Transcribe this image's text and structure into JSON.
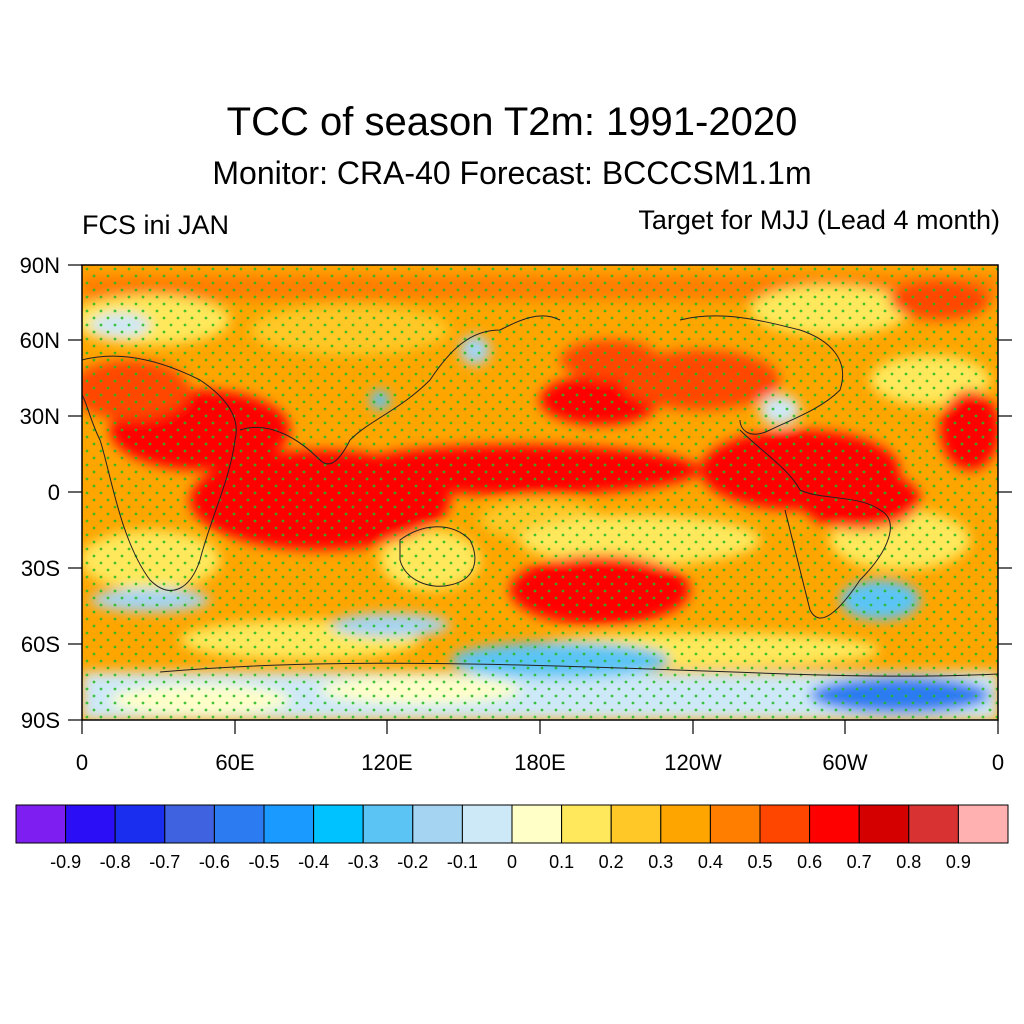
{
  "title": "TCC of season T2m: 1991-2020",
  "subtitle": "Monitor: CRA-40   Forecast: BCCCSM1.1m",
  "left_label": "FCS ini JAN",
  "right_label": "Target for MJJ (Lead 4 month)",
  "lat_labels": [
    "90N",
    "60N",
    "30N",
    "0",
    "30S",
    "60S",
    "90S"
  ],
  "lon_labels": [
    "0",
    "60E",
    "120E",
    "180E",
    "120W",
    "60W",
    "0"
  ],
  "colorbar": {
    "colors": [
      "#7e1ef0",
      "#2b0ef5",
      "#1a2ef0",
      "#3f62e0",
      "#2c7bf0",
      "#1a9aff",
      "#00c2ff",
      "#5cc4f5",
      "#a4d4f2",
      "#cde8f7",
      "#ffffc8",
      "#ffe85c",
      "#ffc826",
      "#ffa500",
      "#ff7e00",
      "#ff4600",
      "#ff0000",
      "#d40000",
      "#d83232",
      "#ffb0b0"
    ],
    "labels": [
      "-0.9",
      "-0.8",
      "-0.7",
      "-0.6",
      "-0.5",
      "-0.4",
      "-0.3",
      "-0.2",
      "-0.1",
      "0",
      "0.1",
      "0.2",
      "0.3",
      "0.4",
      "0.5",
      "0.6",
      "0.7",
      "0.8",
      "0.9"
    ]
  },
  "map_colors": {
    "ocean_base": "#ffa500",
    "stipple": "#22bb22"
  }
}
